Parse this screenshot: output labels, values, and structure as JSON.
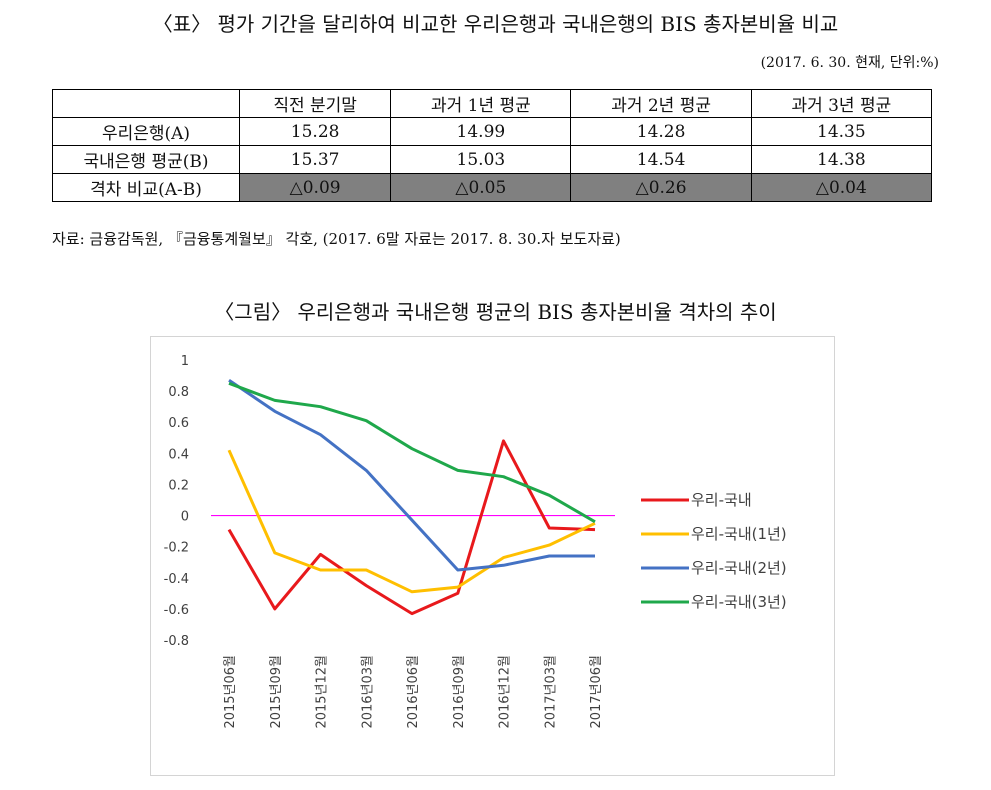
{
  "table": {
    "title": "〈표〉 평가 기간을 달리하여 비교한 우리은행과 국내은행의 BIS 총자본비율 비교",
    "note": "(2017. 6. 30. 현재, 단위:%)",
    "headers": [
      "",
      "직전 분기말",
      "과거 1년 평균",
      "과거 2년 평균",
      "과거 3년 평균"
    ],
    "rows": [
      {
        "label": "우리은행(A)",
        "values": [
          "15.28",
          "14.99",
          "14.28",
          "14.35"
        ]
      },
      {
        "label": "국내은행 평균(B)",
        "values": [
          "15.37",
          "15.03",
          "14.54",
          "14.38"
        ]
      },
      {
        "label": "격차 비교(A-B)",
        "values": [
          "△0.09",
          "△0.05",
          "△0.26",
          "△0.04"
        ]
      }
    ]
  },
  "source": "자료: 금융감독원, 『금융통계월보』 각호, (2017. 6말 자료는 2017. 8. 30.자 보도자료)",
  "figure": {
    "title": "〈그림〉 우리은행과 국내은행 평균의 BIS 총자본비율 격차의 추이"
  },
  "chart_data": {
    "type": "line",
    "title": "",
    "xlabel": "",
    "ylabel": "",
    "x": [
      "2015년06월",
      "2015년09월",
      "2015년12월",
      "2016년03월",
      "2016년06월",
      "2016년09월",
      "2016년12월",
      "2017년03월",
      "2017년06월"
    ],
    "ylim": [
      -0.8,
      1.0
    ],
    "yticks": [
      "1",
      "0.8",
      "0.6",
      "0.4",
      "0.2",
      "0",
      "-0.2",
      "-0.4",
      "-0.6",
      "-0.8"
    ],
    "ytick_values": [
      1,
      0.8,
      0.6,
      0.4,
      0.2,
      0,
      -0.2,
      -0.4,
      -0.6,
      -0.8
    ],
    "grid": false,
    "zero_line_color": "#ff00ff",
    "legend_position": "right",
    "series": [
      {
        "name": "우리-국내",
        "color": "#e8191c",
        "values": [
          -0.09,
          -0.6,
          -0.25,
          -0.45,
          -0.63,
          -0.5,
          0.48,
          -0.08,
          -0.09
        ]
      },
      {
        "name": "우리-국내(1년)",
        "color": "#ffbf00",
        "values": [
          0.42,
          -0.24,
          -0.35,
          -0.35,
          -0.49,
          -0.46,
          -0.27,
          -0.19,
          -0.05
        ]
      },
      {
        "name": "우리-국내(2년)",
        "color": "#4472c4",
        "values": [
          0.87,
          0.67,
          0.52,
          0.29,
          -0.03,
          -0.35,
          -0.32,
          -0.26,
          -0.26
        ]
      },
      {
        "name": "우리-국내(3년)",
        "color": "#1fa84b",
        "values": [
          0.85,
          0.74,
          0.7,
          0.61,
          0.43,
          0.29,
          0.25,
          0.13,
          -0.04
        ]
      }
    ]
  }
}
